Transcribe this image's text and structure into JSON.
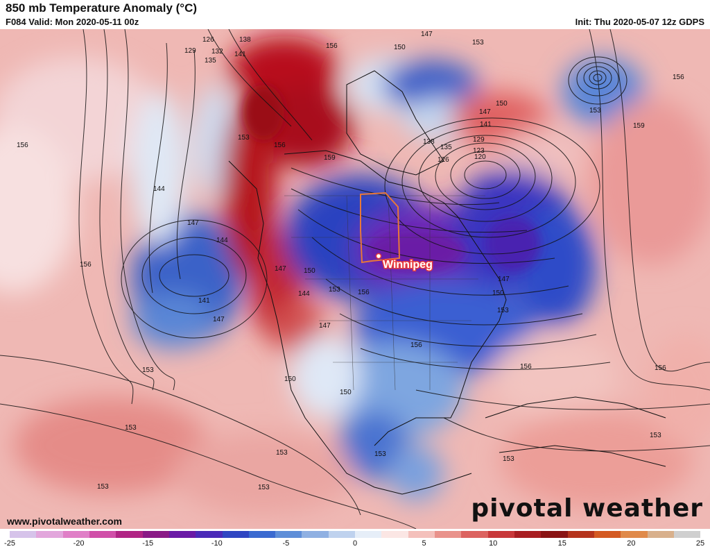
{
  "header": {
    "title": "850 mb Temperature Anomaly (°C)",
    "valid": "F084 Valid: Mon 2020-05-11 00z",
    "init": "Init: Thu 2020-05-07 12z GDPS"
  },
  "map": {
    "city_label": "Winnipeg",
    "contour_labels": [
      {
        "text": "126"
      },
      {
        "text": "138"
      },
      {
        "text": "129"
      },
      {
        "text": "132"
      },
      {
        "text": "135"
      },
      {
        "text": "141"
      },
      {
        "text": "156"
      },
      {
        "text": "147"
      },
      {
        "text": "150"
      },
      {
        "text": "153"
      },
      {
        "text": "147"
      },
      {
        "text": "150"
      },
      {
        "text": "153"
      },
      {
        "text": "156"
      },
      {
        "text": "159"
      },
      {
        "text": "156"
      },
      {
        "text": "153"
      },
      {
        "text": "156"
      },
      {
        "text": "141"
      },
      {
        "text": "129"
      },
      {
        "text": "123"
      },
      {
        "text": "120"
      },
      {
        "text": "126"
      },
      {
        "text": "135"
      },
      {
        "text": "138"
      },
      {
        "text": "159"
      },
      {
        "text": "144"
      },
      {
        "text": "147"
      },
      {
        "text": "144"
      },
      {
        "text": "156"
      },
      {
        "text": "147"
      },
      {
        "text": "150"
      },
      {
        "text": "153"
      },
      {
        "text": "144"
      },
      {
        "text": "141"
      },
      {
        "text": "147"
      },
      {
        "text": "156"
      },
      {
        "text": "147"
      },
      {
        "text": "150"
      },
      {
        "text": "153"
      },
      {
        "text": "156"
      },
      {
        "text": "147"
      },
      {
        "text": "150"
      },
      {
        "text": "150"
      },
      {
        "text": "156"
      },
      {
        "text": "153"
      },
      {
        "text": "156"
      },
      {
        "text": "153"
      },
      {
        "text": "153"
      },
      {
        "text": "153"
      },
      {
        "text": "153"
      },
      {
        "text": "153"
      },
      {
        "text": "153"
      },
      {
        "text": "153"
      }
    ]
  },
  "footer": {
    "website": "www.pivotalweather.com",
    "brand": "pivotal weather"
  },
  "colorbar": {
    "colors": [
      "#d6c3ea",
      "#e2a6dc",
      "#e07fc7",
      "#d04fa8",
      "#b02484",
      "#8a1a86",
      "#6a1aa6",
      "#4a2ab8",
      "#2f46c2",
      "#3a6ad0",
      "#5e8ed8",
      "#8fb0e2",
      "#bfd2ee",
      "#e6eef8",
      "#fbe6e4",
      "#f4c0bb",
      "#e9928b",
      "#dc6360",
      "#c8383a",
      "#a81e22",
      "#8a1414",
      "#b5341c",
      "#d45a22",
      "#e08a4a",
      "#d8b08c",
      "#cfcfcf"
    ],
    "tick_labels": [
      "-25",
      "-20",
      "-15",
      "-10",
      "-5",
      "0",
      "5",
      "10",
      "15",
      "20",
      "25"
    ],
    "tick_values": [
      -25,
      -20,
      -15,
      -10,
      -5,
      0,
      5,
      10,
      15,
      20,
      25
    ],
    "min": -25,
    "max": 25
  }
}
